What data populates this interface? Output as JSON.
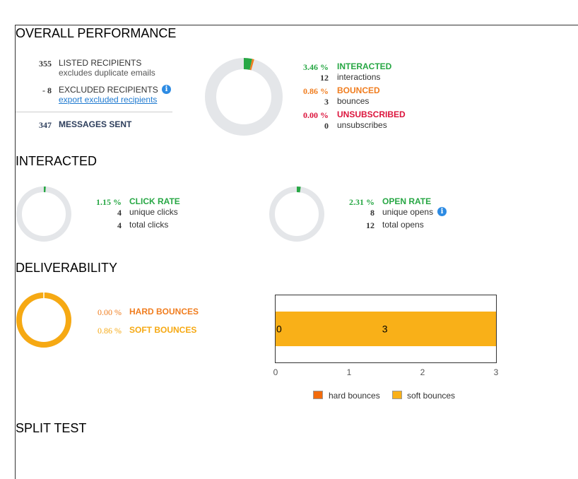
{
  "sections": {
    "overall": "OVERALL PERFORMANCE",
    "interacted": "INTERACTED",
    "deliverability": "DELIVERABILITY",
    "split": "SPLIT TEST"
  },
  "overall": {
    "listed": {
      "value": "355",
      "label": "LISTED RECIPIENTS",
      "sub": "excludes duplicate emails"
    },
    "excluded": {
      "value": "- 8",
      "label": "EXCLUDED RECIPIENTS",
      "link": "export excluded recipients",
      "info_icon": "info-icon"
    },
    "sent": {
      "value": "347",
      "label": "MESSAGES SENT"
    },
    "interacted": {
      "pct": "3.46 %",
      "label": "INTERACTED",
      "count": "12",
      "count_label": "interactions"
    },
    "bounced": {
      "pct": "0.86 %",
      "label": "BOUNCED",
      "count": "3",
      "count_label": "bounces"
    },
    "unsubscribed": {
      "pct": "0.00 %",
      "label": "UNSUBSCRIBED",
      "count": "0",
      "count_label": "unsubscribes"
    },
    "donut": {
      "interacted_fraction": 0.0346,
      "bounced_fraction": 0.0086
    }
  },
  "interacted": {
    "click": {
      "pct": "1.15 %",
      "label": "CLICK RATE",
      "unique": "4",
      "unique_label": "unique clicks",
      "total": "4",
      "total_label": "total clicks",
      "fraction": 0.0115
    },
    "open": {
      "pct": "2.31 %",
      "label": "OPEN RATE",
      "unique": "8",
      "unique_label": "unique opens",
      "total": "12",
      "total_label": "total opens",
      "fraction": 0.0231,
      "info_icon": "info-icon"
    }
  },
  "deliverability": {
    "hard": {
      "pct": "0.00 %",
      "label": "HARD BOUNCES"
    },
    "soft": {
      "pct": "0.86 %",
      "label": "SOFT BOUNCES"
    },
    "donut": {
      "soft_fraction": 1.0
    }
  },
  "colors": {
    "green": "#27a744",
    "orange": "#f07d1f",
    "red": "#dc143c",
    "yellow": "#f6a913",
    "gray_ring": "#e4e6e9",
    "bar_soft": "#f9b018",
    "bar_hard": "#f26b0c"
  },
  "chart_data": {
    "type": "bar",
    "orientation": "horizontal",
    "stacked": true,
    "categories": [
      ""
    ],
    "series": [
      {
        "name": "hard bounces",
        "values": [
          0
        ]
      },
      {
        "name": "soft bounces",
        "values": [
          3
        ]
      }
    ],
    "data_labels": [
      "0",
      "3"
    ],
    "xlim": [
      0,
      3
    ],
    "x_ticks": [
      "0",
      "1",
      "2",
      "3"
    ],
    "legend": "bottom"
  }
}
